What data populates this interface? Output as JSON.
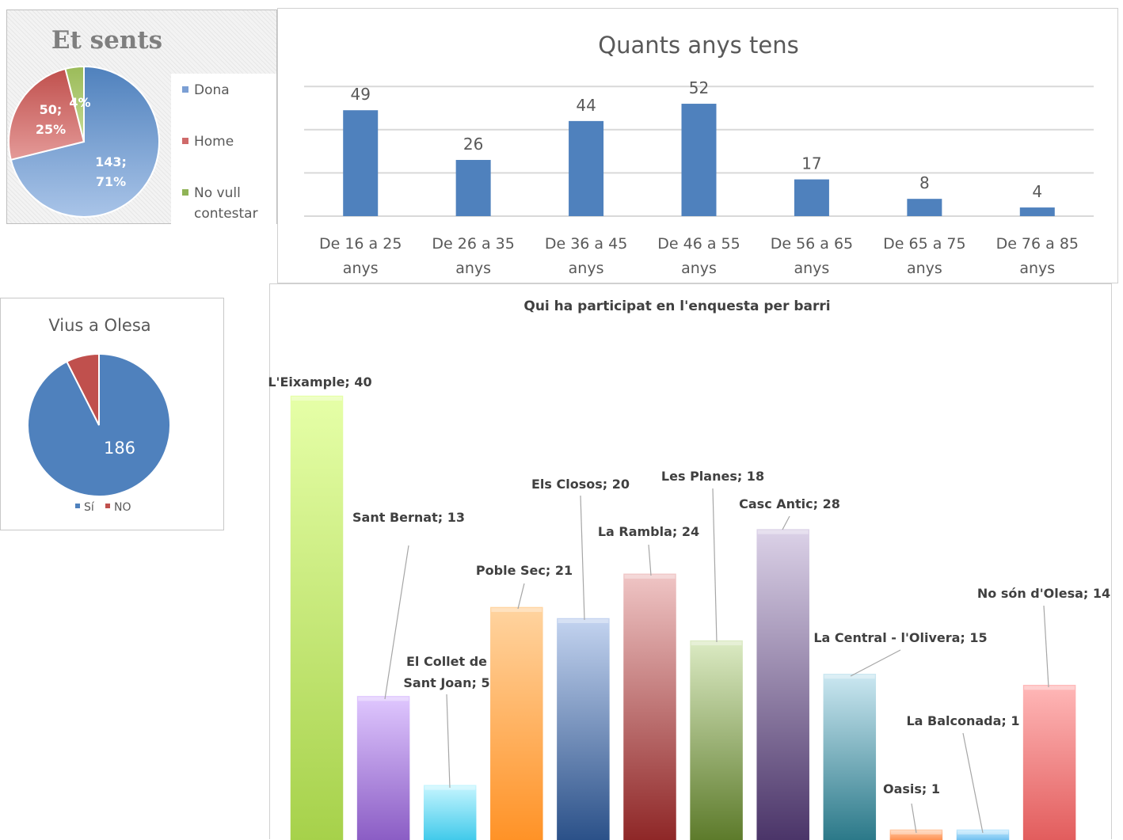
{
  "chart_data": [
    {
      "type": "pie",
      "title": "Et sents",
      "legend": "right",
      "slices": [
        {
          "name": "Dona",
          "value": 143,
          "label": "143;\n71%",
          "color": "#7b9fd4"
        },
        {
          "name": "Home",
          "value": 50,
          "label": "50;\n25%",
          "color": "#cf6a6a"
        },
        {
          "name": "No vull contestar",
          "value": 8,
          "label": "4%",
          "color": "#8fb356"
        }
      ]
    },
    {
      "type": "bar",
      "title": "Quants anys tens",
      "categories": [
        "De 16 a 25 anys",
        "De 26 a 35 anys",
        "De 36 a 45 anys",
        "De 46 a 55 anys",
        "De 56 a 65 anys",
        "De 65 a 75 anys",
        "De 76 a 85 anys"
      ],
      "values": [
        49,
        26,
        44,
        52,
        17,
        8,
        4
      ],
      "ylim": [
        0,
        60
      ],
      "grid": true,
      "color": "#4f81bd"
    },
    {
      "type": "pie",
      "title": "Vius a Olesa",
      "legend": "bottom",
      "slices": [
        {
          "name": "Sí",
          "value": 186,
          "label": "186",
          "color": "#4f81bd"
        },
        {
          "name": "NO",
          "value": 15,
          "label": "",
          "color": "#c0504d"
        }
      ]
    },
    {
      "type": "bar",
      "title": "Qui ha participat  en l'enquesta per barri",
      "categories": [
        "L'Eixample",
        "Sant Bernat",
        "El Collet de Sant Joan",
        "Poble Sec",
        "Els Closos",
        "La Rambla",
        "Les Planes",
        "Casc Antic",
        "La Central - l'Olivera",
        "Oasis",
        "La Balconada",
        "No són d'Olesa"
      ],
      "values": [
        40,
        13,
        5,
        21,
        20,
        24,
        18,
        28,
        15,
        1,
        1,
        14
      ],
      "data_labels": [
        "L'Eixample; 40",
        "Sant Bernat; 13",
        "El Collet de\nSant Joan; 5",
        "Poble Sec; 21",
        "Els Closos; 20",
        "La Rambla; 24",
        "Les Planes; 18",
        "Casc Antic; 28",
        "La Central - l'Olivera; 15",
        "Oasis; 1",
        "La Balconada; 1",
        "No són d'Olesa; 14"
      ],
      "colors": [
        [
          "#e6ffa8",
          "#a6d14a"
        ],
        [
          "#e0c8ff",
          "#8a5cc4"
        ],
        [
          "#c8f6ff",
          "#3ec9ea"
        ],
        [
          "#ffd4a0",
          "#ff9226"
        ],
        [
          "#c4d4f0",
          "#2a5088"
        ],
        [
          "#f0c6c6",
          "#8e2626"
        ],
        [
          "#dcebc4",
          "#5c7a2a"
        ],
        [
          "#dcd2e8",
          "#4a3468"
        ],
        [
          "#cce8f2",
          "#2a7888"
        ],
        [
          "#ffd0b0",
          "#ff8844"
        ],
        [
          "#c8ecff",
          "#66bbee"
        ],
        [
          "#ffb8b8",
          "#e25c5c"
        ]
      ]
    }
  ]
}
